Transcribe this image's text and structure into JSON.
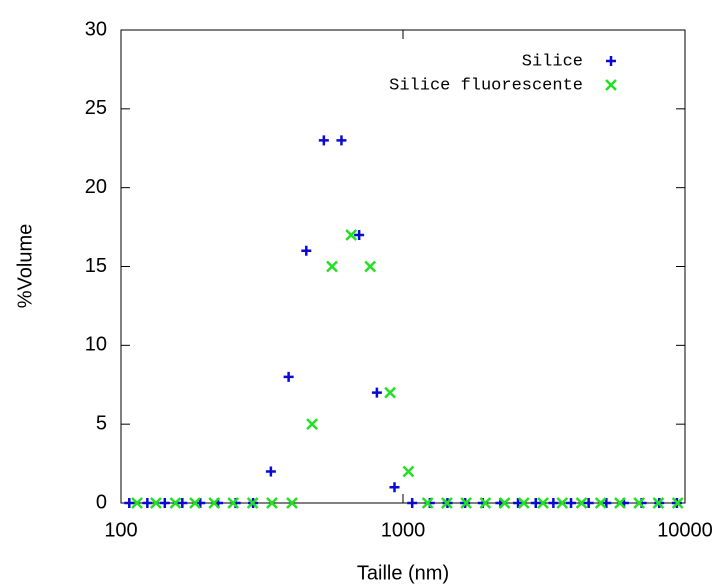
{
  "chart_data": {
    "type": "scatter",
    "xlabel": "Taille (nm)",
    "ylabel": "%Volume",
    "xlog": true,
    "xlim": [
      100,
      10000
    ],
    "xticks": [
      100,
      1000,
      10000
    ],
    "ylim": [
      0,
      30
    ],
    "yticks": [
      0,
      5,
      10,
      15,
      20,
      25,
      30
    ],
    "legend": "top-right",
    "series": [
      {
        "name": "Silice",
        "color": "#0a0ad0",
        "marker": "plus",
        "x": [
          107,
          124,
          143,
          165,
          191,
          221,
          255,
          294,
          340,
          393,
          454,
          524,
          605,
          699,
          808,
          933,
          1078,
          1245,
          1438,
          1661,
          1918,
          2216,
          2559,
          2956,
          3414,
          3943,
          4554,
          5260,
          6075,
          7017,
          8104,
          9360
        ],
        "values": [
          0,
          0,
          0,
          0,
          0,
          0,
          0,
          0,
          2,
          8,
          16,
          23,
          23,
          17,
          7,
          1,
          0,
          0,
          0,
          0,
          0,
          0,
          0,
          0,
          0,
          0,
          0,
          0,
          0,
          0,
          0,
          0
        ]
      },
      {
        "name": "Silice fluorescente",
        "color": "#22e022",
        "marker": "cross",
        "x": [
          114,
          133,
          156,
          183,
          214,
          250,
          293,
          343,
          404,
          476,
          560,
          655,
          765,
          900,
          1045,
          1223,
          1431,
          1674,
          1959,
          2292,
          2681,
          3137,
          3671,
          4295,
          5025,
          5879,
          6879,
          8048,
          9416
        ],
        "values": [
          0,
          0,
          0,
          0,
          0,
          0,
          0,
          0,
          0,
          5,
          15,
          17,
          15,
          7,
          2,
          0,
          0,
          0,
          0,
          0,
          0,
          0,
          0,
          0,
          0,
          0,
          0,
          0,
          0
        ]
      }
    ]
  }
}
